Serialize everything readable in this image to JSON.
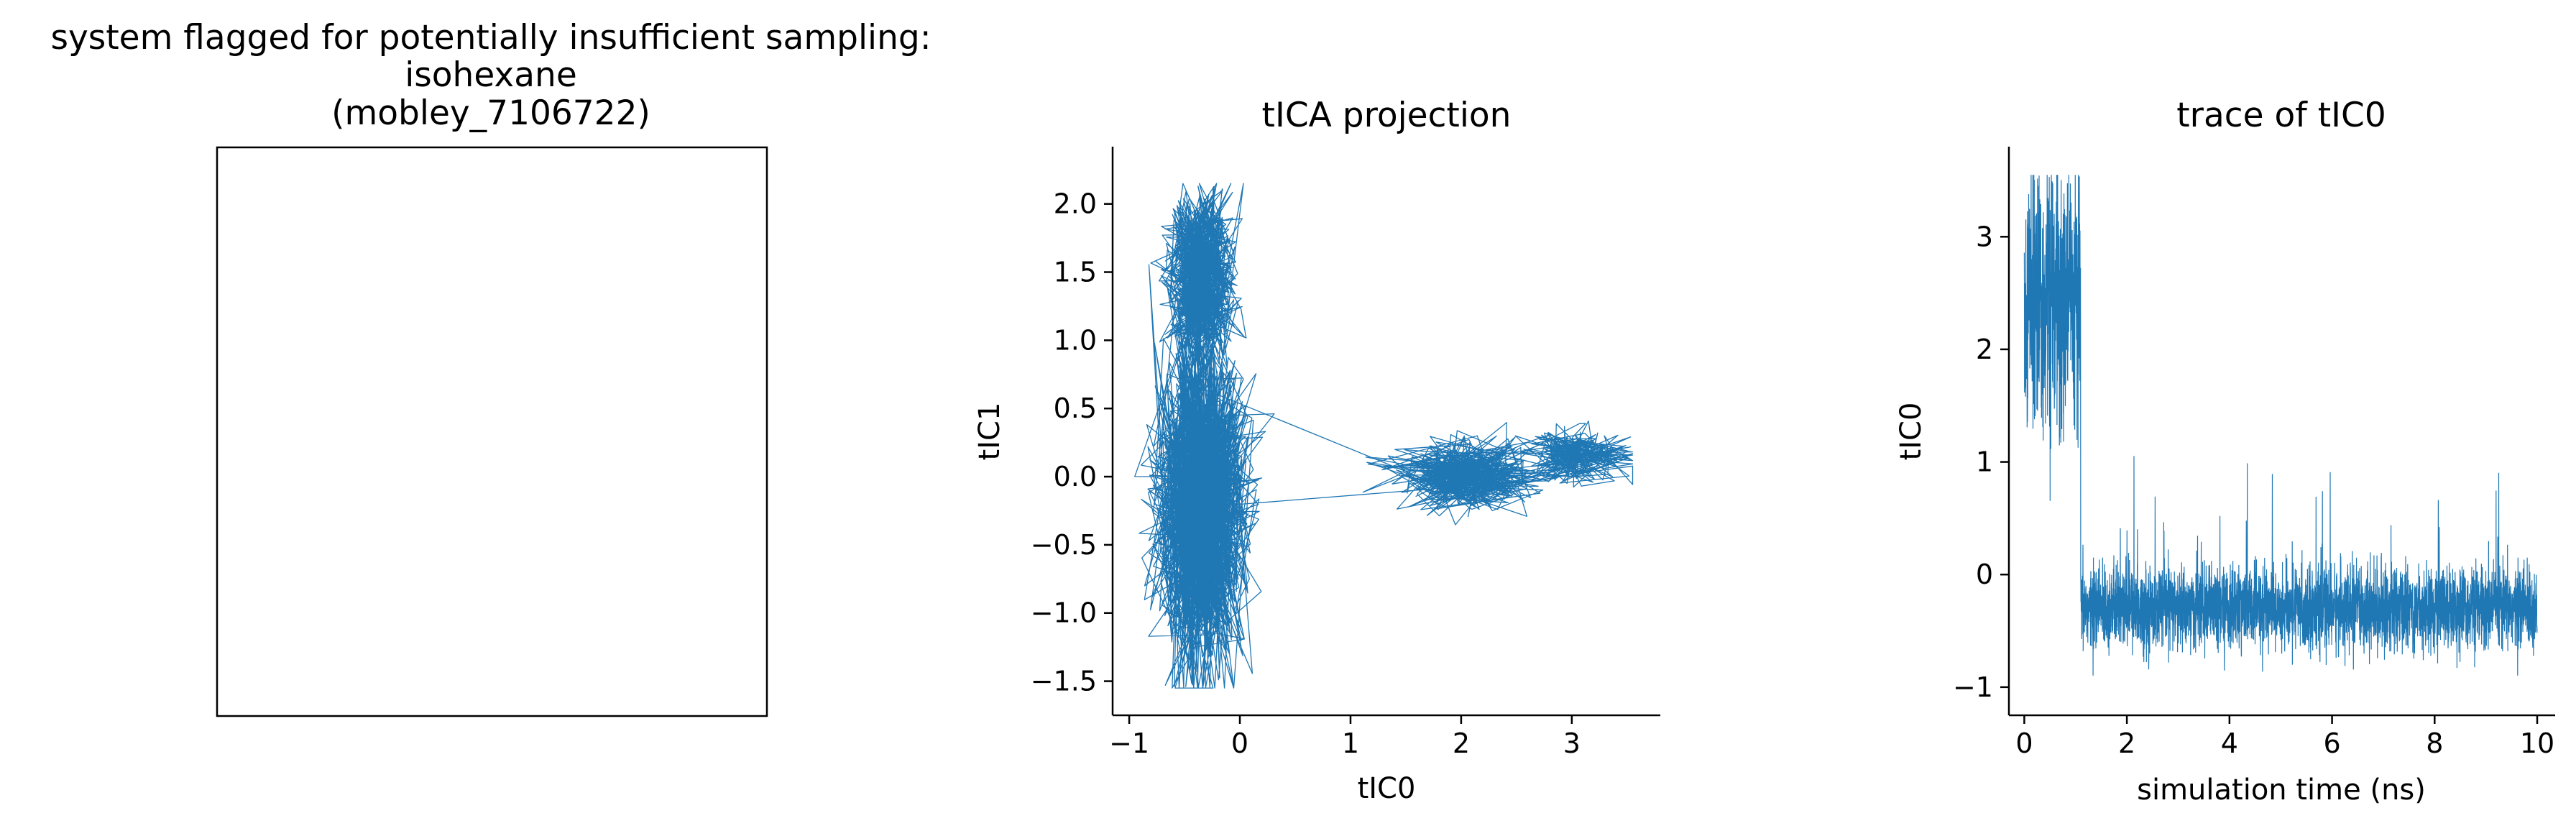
{
  "colors": {
    "series": "#1f77b4",
    "axes": "#000000",
    "background": "#ffffff"
  },
  "chart_data": [
    {
      "type": "image",
      "title_lines": [
        "system flagged for potentially insufficient sampling:",
        "isohexane",
        "(mobley_7106722)"
      ],
      "content": "blank framed panel"
    },
    {
      "type": "line",
      "title": "tICA projection",
      "xlabel": "tIC0",
      "ylabel": "tIC1",
      "xlim": [
        -1.15,
        3.8
      ],
      "ylim": [
        -1.75,
        2.42
      ],
      "xticks": [
        -1,
        0,
        1,
        2,
        3
      ],
      "xtick_labels": [
        "−1",
        "0",
        "1",
        "2",
        "3"
      ],
      "yticks": [
        -1.5,
        -1.0,
        -0.5,
        0.0,
        0.5,
        1.0,
        1.5,
        2.0
      ],
      "ytick_labels": [
        "−1.5",
        "−1.0",
        "−0.5",
        "0.0",
        "0.5",
        "1.0",
        "1.5",
        "2.0"
      ],
      "clusters": [
        {
          "center": [
            -0.35,
            1.6
          ],
          "spread": [
            0.14,
            0.25
          ],
          "count": 500
        },
        {
          "center": [
            -0.35,
            1.25
          ],
          "spread": [
            0.15,
            0.2
          ],
          "count": 300
        },
        {
          "center": [
            -0.35,
            -0.2
          ],
          "spread": [
            0.2,
            0.55
          ],
          "count": 1400
        },
        {
          "center": [
            2.05,
            0.0
          ],
          "spread": [
            0.3,
            0.12
          ],
          "count": 500
        },
        {
          "center": [
            3.05,
            0.15
          ],
          "spread": [
            0.25,
            0.1
          ],
          "count": 500
        }
      ],
      "x_range": [
        -0.95,
        3.55
      ],
      "y_range": [
        -1.55,
        2.15
      ],
      "grid": false,
      "legend": "none"
    },
    {
      "type": "line",
      "title": "trace of tIC0",
      "xlabel": "simulation time (ns)",
      "ylabel": "tIC0",
      "xlim": [
        -0.3,
        10.35
      ],
      "ylim": [
        -1.25,
        3.8
      ],
      "xticks": [
        0,
        2,
        4,
        6,
        8,
        10
      ],
      "xtick_labels": [
        "0",
        "2",
        "4",
        "6",
        "8",
        "10"
      ],
      "yticks": [
        -1,
        0,
        1,
        2,
        3
      ],
      "ytick_labels": [
        "−1",
        "0",
        "1",
        "2",
        "3"
      ],
      "segments": [
        {
          "t_range": [
            0.0,
            1.1
          ],
          "mean": 2.4,
          "spread": 0.6,
          "y_min": 0.5,
          "y_max": 3.55
        },
        {
          "t_range": [
            1.1,
            10.0
          ],
          "mean": -0.3,
          "spread": 0.18,
          "y_min": -0.95,
          "y_max": 1.1
        }
      ],
      "grid": false,
      "legend": "none"
    }
  ]
}
